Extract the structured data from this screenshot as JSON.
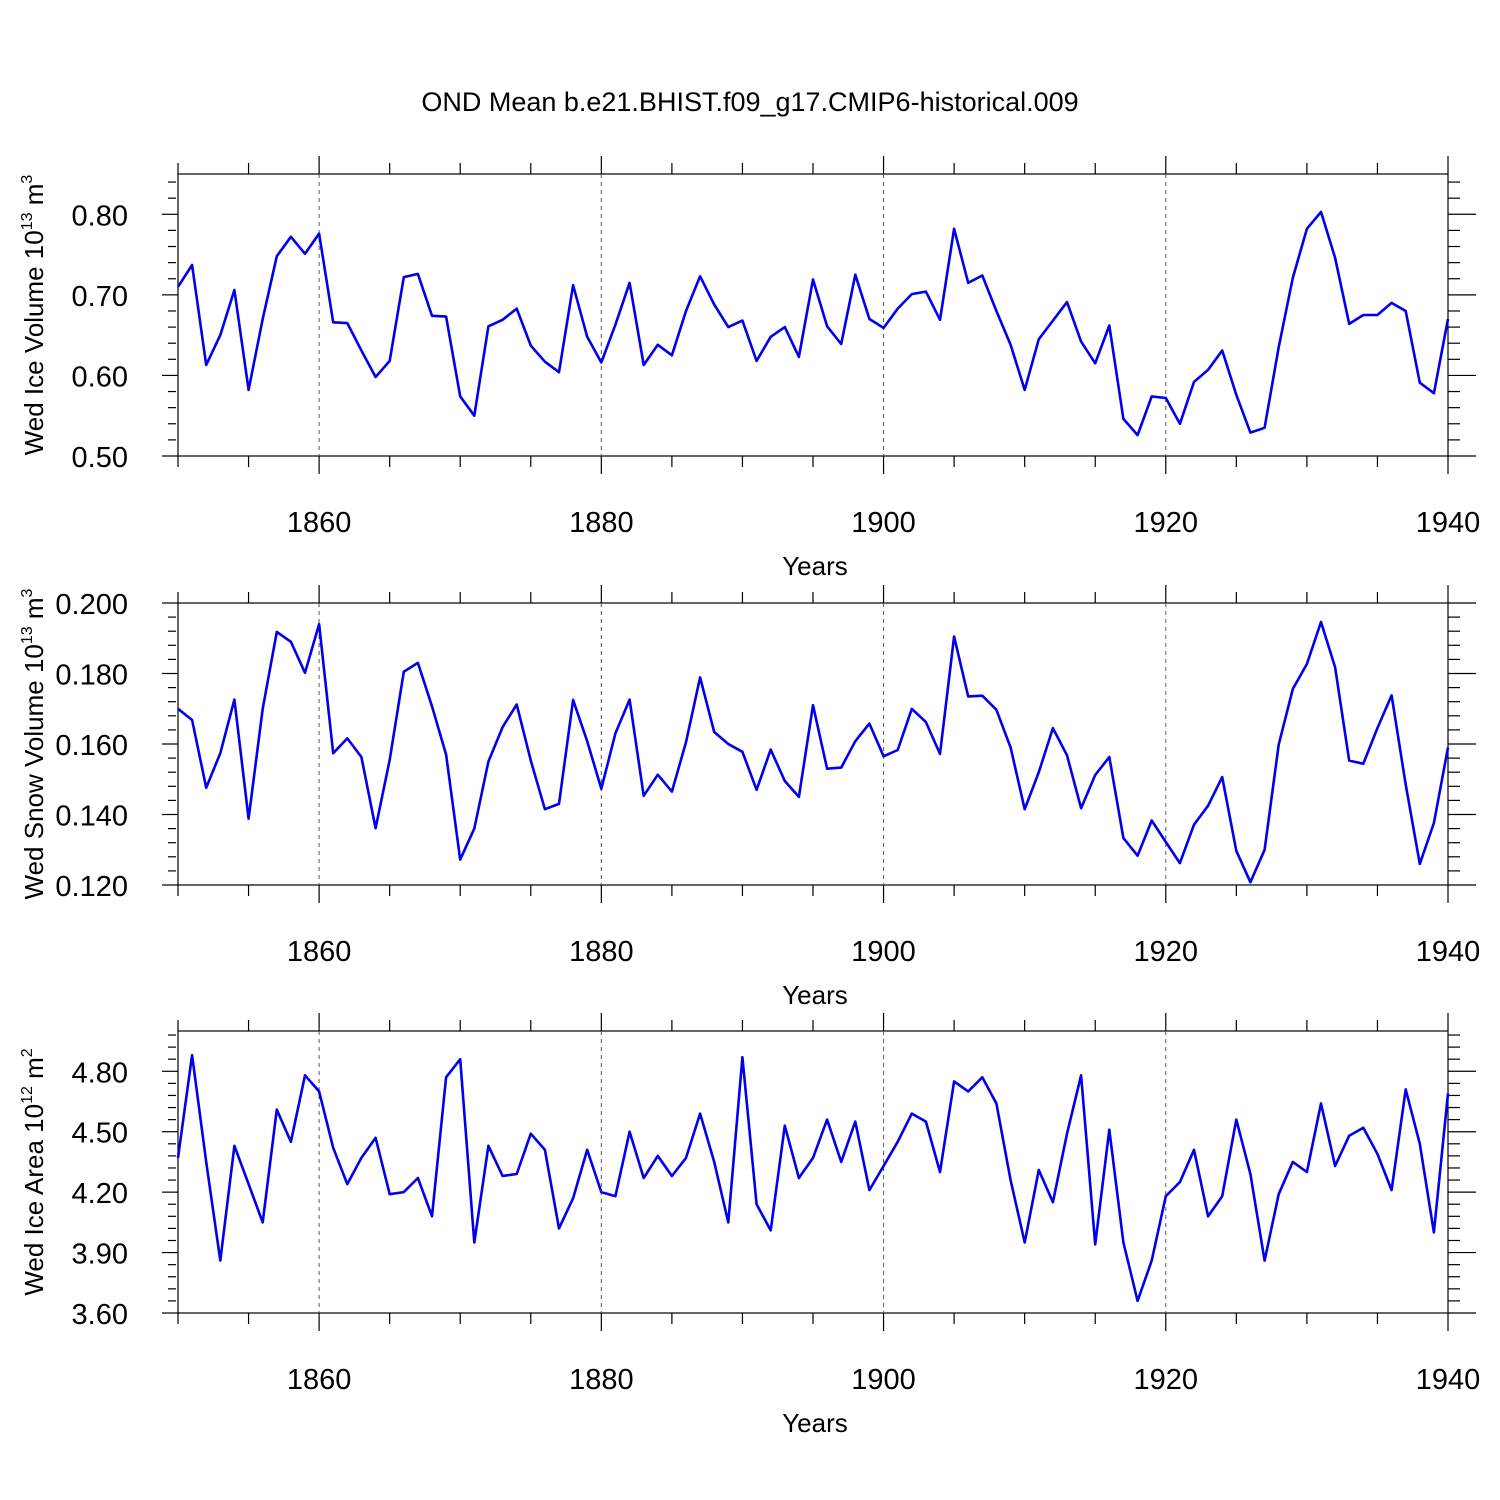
{
  "title": "OND Mean b.e21.BHIST.f09_g17.CMIP6-historical.009",
  "line_color": "#0000ee",
  "chart_data": [
    {
      "type": "line",
      "ylabel": "Wed Ice Volume 10",
      "ylabel_exponent": "13",
      "ylabel_unit": "m",
      "ylabel_unit_exponent": "3",
      "xlabel": "Years",
      "xlim": [
        1850,
        1940
      ],
      "ylim": [
        0.5,
        0.85
      ],
      "yticks": [
        0.5,
        0.6,
        0.7,
        0.8
      ],
      "ytick_labels": [
        "0.50",
        "0.60",
        "0.70",
        "0.80"
      ],
      "xticks": [
        1860,
        1880,
        1900,
        1920,
        1940
      ],
      "xtick_labels": [
        "1860",
        "1880",
        "1900",
        "1920",
        "1940"
      ],
      "grid_x": true,
      "series": [
        {
          "name": "Wed Ice Volume",
          "x_start": 1850,
          "values": [
            0.71,
            0.737,
            0.613,
            0.65,
            0.706,
            0.582,
            0.67,
            0.748,
            0.772,
            0.751,
            0.776,
            0.666,
            0.665,
            0.631,
            0.598,
            0.618,
            0.722,
            0.726,
            0.674,
            0.673,
            0.574,
            0.55,
            0.661,
            0.669,
            0.683,
            0.637,
            0.617,
            0.604,
            0.712,
            0.648,
            0.616,
            0.663,
            0.715,
            0.613,
            0.638,
            0.625,
            0.68,
            0.723,
            0.688,
            0.66,
            0.668,
            0.618,
            0.648,
            0.66,
            0.623,
            0.719,
            0.661,
            0.639,
            0.725,
            0.67,
            0.659,
            0.683,
            0.701,
            0.704,
            0.669,
            0.782,
            0.715,
            0.724,
            0.68,
            0.638,
            0.582,
            0.645,
            0.668,
            0.691,
            0.642,
            0.615,
            0.662,
            0.546,
            0.526,
            0.574,
            0.572,
            0.54,
            0.592,
            0.607,
            0.631,
            0.576,
            0.529,
            0.535,
            0.635,
            0.721,
            0.782,
            0.803,
            0.746,
            0.664,
            0.675,
            0.675,
            0.69,
            0.68,
            0.591,
            0.578,
            0.67
          ]
        }
      ]
    },
    {
      "type": "line",
      "ylabel": "Wed Snow Volume 10",
      "ylabel_exponent": "13",
      "ylabel_unit": "m",
      "ylabel_unit_exponent": "3",
      "xlabel": "Years",
      "xlim": [
        1850,
        1940
      ],
      "ylim": [
        0.12,
        0.2
      ],
      "yticks": [
        0.12,
        0.14,
        0.16,
        0.18,
        0.2
      ],
      "ytick_labels": [
        "0.120",
        "0.140",
        "0.160",
        "0.180",
        "0.200"
      ],
      "xticks": [
        1860,
        1880,
        1900,
        1920,
        1940
      ],
      "xtick_labels": [
        "1860",
        "1880",
        "1900",
        "1920",
        "1940"
      ],
      "grid_x": true,
      "series": [
        {
          "name": "Wed Snow Volume",
          "x_start": 1850,
          "values": [
            0.17,
            0.1668,
            0.1476,
            0.1574,
            0.1726,
            0.1388,
            0.17,
            0.1918,
            0.189,
            0.1802,
            0.194,
            0.1574,
            0.1616,
            0.1563,
            0.1361,
            0.1555,
            0.1805,
            0.183,
            0.1707,
            0.157,
            0.1272,
            0.136,
            0.155,
            0.1648,
            0.1712,
            0.1553,
            0.1415,
            0.143,
            0.1725,
            0.1608,
            0.1473,
            0.163,
            0.1726,
            0.1453,
            0.1513,
            0.1465,
            0.1605,
            0.1789,
            0.1634,
            0.16,
            0.1578,
            0.147,
            0.1584,
            0.1495,
            0.145,
            0.171,
            0.153,
            0.1533,
            0.1608,
            0.1658,
            0.1565,
            0.1583,
            0.17,
            0.1662,
            0.1572,
            0.1905,
            0.1735,
            0.1737,
            0.1697,
            0.159,
            0.1415,
            0.152,
            0.1645,
            0.1568,
            0.1418,
            0.1512,
            0.1563,
            0.1333,
            0.1283,
            0.1383,
            0.1322,
            0.1262,
            0.1371,
            0.1425,
            0.1506,
            0.1297,
            0.1208,
            0.13,
            0.1598,
            0.1756,
            0.1827,
            0.1946,
            0.1818,
            0.1553,
            0.1544,
            0.1645,
            0.1738,
            0.1485,
            0.126,
            0.1376,
            0.159
          ]
        }
      ]
    },
    {
      "type": "line",
      "ylabel": "Wed Ice Area 10",
      "ylabel_exponent": "12",
      "ylabel_unit": "m",
      "ylabel_unit_exponent": "2",
      "xlabel": "Years",
      "xlim": [
        1850,
        1940
      ],
      "ylim": [
        3.6,
        5.0
      ],
      "yticks": [
        3.6,
        3.9,
        4.2,
        4.5,
        4.8
      ],
      "ytick_labels": [
        "3.60",
        "3.90",
        "4.20",
        "4.50",
        "4.80"
      ],
      "xticks": [
        1860,
        1880,
        1900,
        1920,
        1940
      ],
      "xtick_labels": [
        "1860",
        "1880",
        "1900",
        "1920",
        "1940"
      ],
      "grid_x": true,
      "series": [
        {
          "name": "Wed Ice Area",
          "x_start": 1850,
          "values": [
            4.37,
            4.88,
            4.35,
            3.86,
            4.43,
            4.24,
            4.05,
            4.61,
            4.45,
            4.78,
            4.7,
            4.42,
            4.24,
            4.37,
            4.47,
            4.19,
            4.2,
            4.27,
            4.08,
            4.77,
            4.86,
            3.95,
            4.43,
            4.28,
            4.29,
            4.49,
            4.41,
            4.02,
            4.17,
            4.41,
            4.2,
            4.18,
            4.5,
            4.27,
            4.38,
            4.28,
            4.37,
            4.59,
            4.35,
            4.05,
            4.87,
            4.14,
            4.01,
            4.53,
            4.27,
            4.37,
            4.56,
            4.35,
            4.55,
            4.21,
            4.33,
            4.45,
            4.59,
            4.55,
            4.3,
            4.75,
            4.7,
            4.77,
            4.64,
            4.26,
            3.95,
            4.31,
            4.15,
            4.49,
            4.78,
            3.94,
            4.51,
            3.95,
            3.66,
            3.86,
            4.18,
            4.25,
            4.41,
            4.08,
            4.18,
            4.56,
            4.29,
            3.86,
            4.19,
            4.35,
            4.3,
            4.64,
            4.33,
            4.48,
            4.52,
            4.39,
            4.21,
            4.71,
            4.44,
            4.0,
            4.69
          ]
        }
      ]
    }
  ]
}
